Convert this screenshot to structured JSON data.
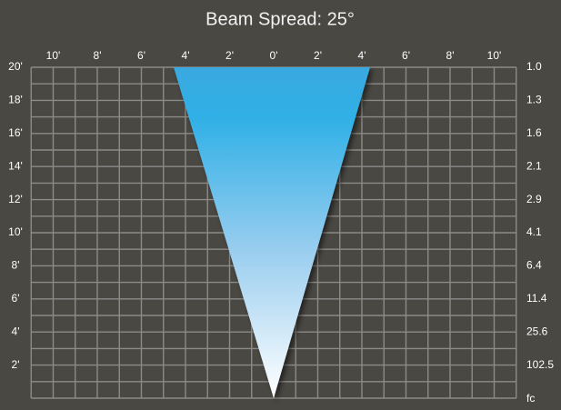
{
  "title": "Beam Spread: 25°",
  "x_labels": [
    "10'",
    "8'",
    "6'",
    "4'",
    "2'",
    "0'",
    "2'",
    "4'",
    "6'",
    "8'",
    "10'"
  ],
  "y_labels": [
    "20'",
    "18'",
    "16'",
    "14'",
    "12'",
    "10'",
    "8'",
    "6'",
    "4'",
    "2'"
  ],
  "fc_values": [
    "1.0",
    "1.3",
    "1.6",
    "2.1",
    "2.9",
    "4.1",
    "6.4",
    "11.4",
    "25.6",
    "102.5"
  ],
  "fc_unit": "fc"
}
